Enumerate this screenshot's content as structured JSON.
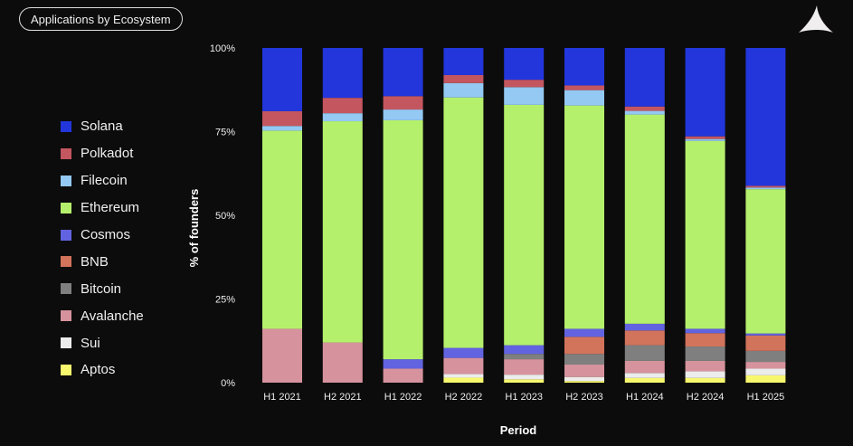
{
  "header": {
    "title": "Applications by Ecosystem"
  },
  "logo": {
    "icon": "triangle-logo-icon"
  },
  "chart_data": {
    "type": "bar",
    "stacked": true,
    "xlabel": "Period",
    "ylabel": "% of founders",
    "ylim": [
      0,
      100
    ],
    "yticks": [
      "0%",
      "25%",
      "50%",
      "75%",
      "100%"
    ],
    "ytick_values": [
      0,
      25,
      50,
      75,
      100
    ],
    "legend_position": "left",
    "categories": [
      "H1 2021",
      "H2 2021",
      "H1 2022",
      "H2 2022",
      "H1 2023",
      "H2 2023",
      "H1 2024",
      "H2 2024",
      "H1 2025"
    ],
    "series": [
      {
        "name": "Aptos",
        "color": "#f8f86e",
        "values": [
          0,
          0,
          0,
          1.5,
          1.0,
          0.5,
          1.4,
          1.4,
          2.2
        ]
      },
      {
        "name": "Sui",
        "color": "#ececec",
        "values": [
          0,
          0,
          0,
          1.1,
          1.4,
          1.2,
          1.5,
          2.0,
          2.0
        ]
      },
      {
        "name": "Avalanche",
        "color": "#d6939d",
        "values": [
          16.1,
          12.0,
          4.2,
          4.8,
          4.6,
          3.7,
          3.6,
          3.1,
          2.0
        ]
      },
      {
        "name": "Bitcoin",
        "color": "#7f7f7f",
        "values": [
          0,
          0,
          0,
          0,
          1.6,
          3.2,
          4.7,
          4.3,
          3.3
        ]
      },
      {
        "name": "BNB",
        "color": "#d2735c",
        "values": [
          0,
          0,
          0,
          0,
          0,
          5.1,
          4.4,
          4.0,
          4.6
        ]
      },
      {
        "name": "Cosmos",
        "color": "#6263e0",
        "values": [
          0,
          0,
          2.8,
          3.0,
          2.6,
          2.4,
          2.0,
          1.3,
          0.6
        ]
      },
      {
        "name": "Ethereum",
        "color": "#b5f06c",
        "values": [
          59.2,
          66.1,
          71.4,
          74.8,
          71.8,
          66.7,
          62.5,
          56.1,
          43.1
        ]
      },
      {
        "name": "Filecoin",
        "color": "#93c9f2",
        "values": [
          1.4,
          2.4,
          3.2,
          4.3,
          5.3,
          4.6,
          1.1,
          0.6,
          0.5
        ]
      },
      {
        "name": "Polkadot",
        "color": "#c45660",
        "values": [
          4.4,
          4.6,
          4.0,
          2.4,
          2.2,
          1.4,
          1.3,
          0.8,
          0.5
        ]
      },
      {
        "name": "Solana",
        "color": "#2236dc",
        "values": [
          18.9,
          14.9,
          14.4,
          8.1,
          9.5,
          11.2,
          17.5,
          26.4,
          41.2
        ]
      }
    ],
    "legend_order": [
      "Solana",
      "Polkadot",
      "Filecoin",
      "Ethereum",
      "Cosmos",
      "BNB",
      "Bitcoin",
      "Avalanche",
      "Sui",
      "Aptos"
    ]
  }
}
